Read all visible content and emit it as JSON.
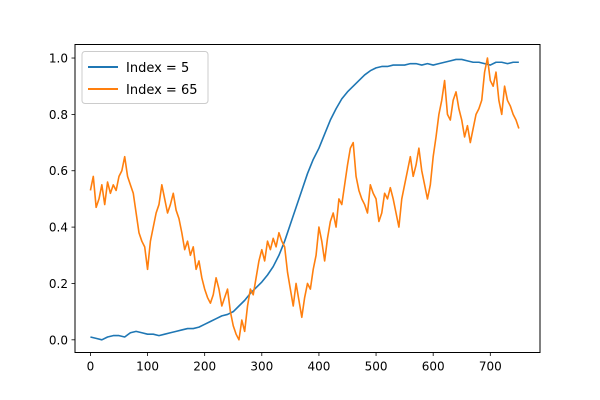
{
  "chart_data": {
    "type": "line",
    "title": "",
    "xlabel": "",
    "ylabel": "",
    "xlim": [
      -27,
      787
    ],
    "ylim": [
      -0.045,
      1.048
    ],
    "x_ticks": [
      0,
      100,
      200,
      300,
      400,
      500,
      600,
      700
    ],
    "y_ticks": [
      0.0,
      0.2,
      0.4,
      0.6,
      0.8,
      1.0
    ],
    "x_tick_labels": [
      "0",
      "100",
      "200",
      "300",
      "400",
      "500",
      "600",
      "700"
    ],
    "y_tick_labels": [
      "0.0",
      "0.2",
      "0.4",
      "0.6",
      "0.8",
      "1.0"
    ],
    "grid": false,
    "legend_position": "upper-left",
    "series": [
      {
        "name": "Index = 5",
        "color": "#1f77b4",
        "x": [
          0,
          10,
          20,
          30,
          40,
          50,
          60,
          70,
          80,
          90,
          100,
          110,
          120,
          130,
          140,
          150,
          160,
          170,
          180,
          190,
          200,
          210,
          220,
          230,
          240,
          250,
          260,
          270,
          280,
          290,
          300,
          310,
          320,
          330,
          340,
          350,
          360,
          370,
          380,
          390,
          400,
          410,
          420,
          430,
          440,
          450,
          460,
          470,
          480,
          490,
          500,
          510,
          520,
          530,
          540,
          550,
          560,
          570,
          580,
          590,
          600,
          610,
          620,
          630,
          640,
          650,
          660,
          670,
          680,
          690,
          700,
          710,
          720,
          730,
          740,
          750
        ],
        "values": [
          0.01,
          0.005,
          0.0,
          0.01,
          0.015,
          0.015,
          0.01,
          0.025,
          0.03,
          0.025,
          0.02,
          0.02,
          0.015,
          0.02,
          0.025,
          0.03,
          0.035,
          0.04,
          0.04,
          0.045,
          0.055,
          0.065,
          0.075,
          0.085,
          0.09,
          0.1,
          0.12,
          0.14,
          0.165,
          0.185,
          0.205,
          0.23,
          0.26,
          0.3,
          0.35,
          0.41,
          0.47,
          0.53,
          0.59,
          0.64,
          0.68,
          0.73,
          0.78,
          0.82,
          0.855,
          0.88,
          0.9,
          0.92,
          0.94,
          0.955,
          0.965,
          0.97,
          0.97,
          0.975,
          0.975,
          0.975,
          0.98,
          0.98,
          0.975,
          0.98,
          0.975,
          0.98,
          0.985,
          0.99,
          0.995,
          0.995,
          0.99,
          0.985,
          0.985,
          0.98,
          0.975,
          0.985,
          0.985,
          0.98,
          0.985,
          0.985
        ]
      },
      {
        "name": "Index = 65",
        "color": "#ff7f0e",
        "x": [
          0,
          5,
          10,
          15,
          20,
          25,
          30,
          35,
          40,
          45,
          50,
          55,
          60,
          65,
          70,
          75,
          80,
          85,
          90,
          95,
          100,
          105,
          110,
          115,
          120,
          125,
          130,
          135,
          140,
          145,
          150,
          155,
          160,
          165,
          170,
          175,
          180,
          185,
          190,
          195,
          200,
          205,
          210,
          215,
          220,
          225,
          230,
          235,
          240,
          245,
          250,
          255,
          260,
          265,
          270,
          275,
          280,
          285,
          290,
          295,
          300,
          305,
          310,
          315,
          320,
          325,
          330,
          335,
          340,
          345,
          350,
          355,
          360,
          365,
          370,
          375,
          380,
          385,
          390,
          395,
          400,
          405,
          410,
          415,
          420,
          425,
          430,
          435,
          440,
          445,
          450,
          455,
          460,
          465,
          470,
          475,
          480,
          485,
          490,
          495,
          500,
          505,
          510,
          515,
          520,
          525,
          530,
          535,
          540,
          545,
          550,
          555,
          560,
          565,
          570,
          575,
          580,
          585,
          590,
          595,
          600,
          605,
          610,
          615,
          620,
          625,
          630,
          635,
          640,
          645,
          650,
          655,
          660,
          665,
          670,
          675,
          680,
          685,
          690,
          695,
          700,
          705,
          710,
          715,
          720,
          725,
          730,
          735,
          740,
          745,
          750
        ],
        "values": [
          0.53,
          0.58,
          0.47,
          0.5,
          0.55,
          0.48,
          0.56,
          0.52,
          0.55,
          0.53,
          0.58,
          0.6,
          0.65,
          0.58,
          0.55,
          0.52,
          0.45,
          0.38,
          0.35,
          0.33,
          0.25,
          0.35,
          0.4,
          0.45,
          0.48,
          0.55,
          0.5,
          0.45,
          0.48,
          0.52,
          0.46,
          0.43,
          0.38,
          0.32,
          0.35,
          0.3,
          0.33,
          0.25,
          0.28,
          0.22,
          0.18,
          0.15,
          0.13,
          0.16,
          0.22,
          0.18,
          0.12,
          0.15,
          0.18,
          0.1,
          0.05,
          0.02,
          0.0,
          0.07,
          0.03,
          0.12,
          0.18,
          0.16,
          0.22,
          0.28,
          0.32,
          0.28,
          0.35,
          0.32,
          0.36,
          0.33,
          0.38,
          0.35,
          0.33,
          0.24,
          0.18,
          0.12,
          0.2,
          0.14,
          0.08,
          0.15,
          0.2,
          0.18,
          0.25,
          0.3,
          0.4,
          0.35,
          0.28,
          0.36,
          0.42,
          0.45,
          0.4,
          0.5,
          0.48,
          0.55,
          0.62,
          0.68,
          0.7,
          0.58,
          0.53,
          0.5,
          0.48,
          0.45,
          0.55,
          0.52,
          0.5,
          0.42,
          0.45,
          0.52,
          0.5,
          0.54,
          0.5,
          0.45,
          0.4,
          0.5,
          0.55,
          0.6,
          0.65,
          0.58,
          0.62,
          0.68,
          0.6,
          0.55,
          0.5,
          0.55,
          0.65,
          0.72,
          0.8,
          0.85,
          0.92,
          0.8,
          0.78,
          0.85,
          0.88,
          0.82,
          0.78,
          0.72,
          0.76,
          0.7,
          0.75,
          0.8,
          0.82,
          0.85,
          0.95,
          1.0,
          0.92,
          0.9,
          0.95,
          0.85,
          0.8,
          0.9,
          0.85,
          0.83,
          0.8,
          0.78,
          0.75
        ]
      }
    ]
  }
}
